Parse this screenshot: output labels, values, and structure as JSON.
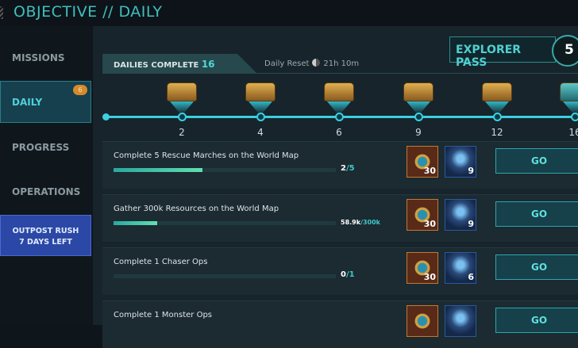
{
  "header": {
    "title": "OBJECTIVE // DAILY"
  },
  "sidebar": {
    "items": [
      {
        "label": "MISSIONS"
      },
      {
        "label": "DAILY",
        "badge": "6"
      },
      {
        "label": "PROGRESS"
      },
      {
        "label": "OPERATIONS"
      }
    ],
    "event": {
      "line1": "OUTPOST RUSH",
      "line2": "7 DAYS LEFT"
    }
  },
  "dailies": {
    "label": "DAILIES COMPLETE",
    "count": "16",
    "reset_label": "Daily Reset",
    "reset_time": "21h 10m"
  },
  "explorer_pass": {
    "label": "EXPLORER PASS",
    "level": "5"
  },
  "milestones": [
    "2",
    "4",
    "6",
    "9",
    "12",
    "16"
  ],
  "missions": [
    {
      "title": "Complete 5 Rescue Marches on the World Map",
      "current": "2",
      "total": "/5",
      "progress": 0.4,
      "reward1": "30",
      "reward2": "9",
      "button": "GO"
    },
    {
      "title": "Gather 300k Resources on the World Map",
      "current": "58.9k",
      "total": "/300k",
      "progress": 0.196,
      "reward1": "30",
      "reward2": "9",
      "button": "GO"
    },
    {
      "title": "Complete 1 Chaser Ops",
      "current": "0",
      "total": "/1",
      "progress": 0,
      "reward1": "30",
      "reward2": "6",
      "button": "GO"
    },
    {
      "title": "Complete 1 Monster Ops",
      "current": "",
      "total": "",
      "progress": 0,
      "reward1": "",
      "reward2": "",
      "button": "GO"
    }
  ]
}
